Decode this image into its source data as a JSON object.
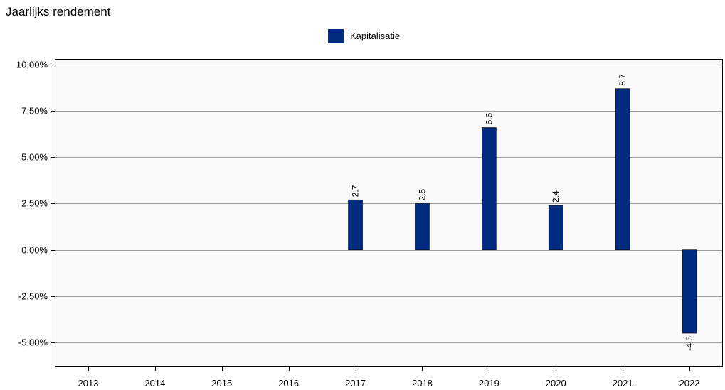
{
  "chart_data": {
    "type": "bar",
    "title": "Jaarlijks rendement",
    "categories": [
      "2013",
      "2014",
      "2015",
      "2016",
      "2017",
      "2018",
      "2019",
      "2020",
      "2021",
      "2022"
    ],
    "series": [
      {
        "name": "Kapitalisatie",
        "values": [
          null,
          null,
          null,
          null,
          2.7,
          2.5,
          6.6,
          2.4,
          8.7,
          -4.5
        ],
        "data_labels": [
          "",
          "",
          "",
          "",
          "2.7",
          "2.5",
          "6.6",
          "2.4",
          "8.7",
          "-4.5"
        ],
        "color": "#002b7f"
      }
    ],
    "yticks": [
      10,
      7.5,
      5,
      2.5,
      0,
      -2.5,
      -5
    ],
    "ytick_labels": [
      "10,00%",
      "7,50%",
      "5,00%",
      "2,50%",
      "0,00%",
      "-2,50%",
      "-5,00%"
    ],
    "ylim": [
      -6.3,
      10.3
    ],
    "grid": true,
    "legend_position": "top-center",
    "plot_background": "#f9f9f9",
    "grid_color": "#999999"
  }
}
